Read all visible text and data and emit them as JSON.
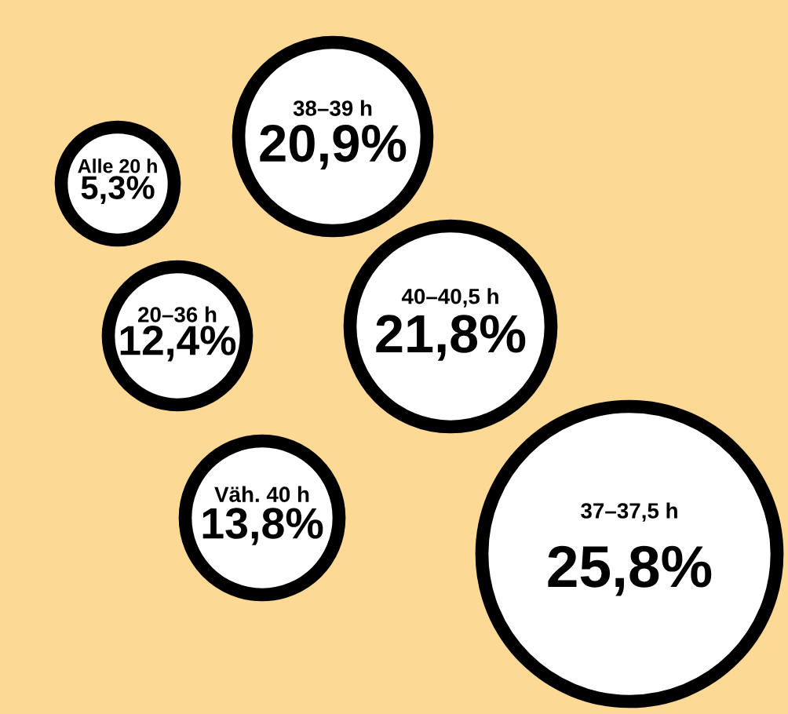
{
  "chart_data": {
    "type": "other",
    "categories": [
      "38–39 h",
      "Alle 20 h",
      "20–36 h",
      "40–40,5 h",
      "Väh. 40 h",
      "37–37,5 h"
    ],
    "values": [
      20.9,
      5.3,
      12.4,
      21.8,
      13.8,
      25.8
    ],
    "value_labels": [
      "20,9%",
      "5,3%",
      "12,4%",
      "21,8%",
      "13,8%",
      "25,8%"
    ],
    "color": "#ffffff"
  }
}
